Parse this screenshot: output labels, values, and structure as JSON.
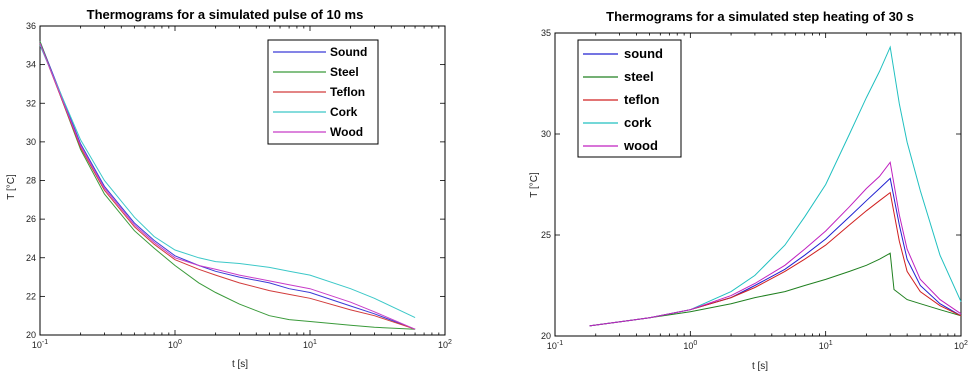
{
  "chart_data": [
    {
      "type": "line",
      "title": "Thermograms for a simulated pulse of 10 ms",
      "xlabel": "t [s]",
      "ylabel": "T [°C]",
      "xscale": "log",
      "xlim": [
        0.1,
        100
      ],
      "ylim": [
        20,
        36
      ],
      "xticks": [
        0.1,
        1,
        10,
        100
      ],
      "xtick_labels": [
        {
          "base": "10",
          "exp": "-1"
        },
        {
          "base": "10",
          "exp": "0"
        },
        {
          "base": "10",
          "exp": "1"
        },
        {
          "base": "10",
          "exp": "2"
        }
      ],
      "yticks": [
        20,
        22,
        24,
        26,
        28,
        30,
        32,
        34,
        36
      ],
      "legend": "top-right",
      "grid": false,
      "series": [
        {
          "name": "Sound",
          "color": "#3b3bd6",
          "x": [
            0.1,
            0.2,
            0.3,
            0.5,
            0.7,
            1,
            1.5,
            2,
            3,
            5,
            7,
            10,
            20,
            30,
            60
          ],
          "y": [
            35.2,
            29.9,
            27.7,
            25.8,
            24.9,
            24.1,
            23.6,
            23.3,
            23.0,
            22.7,
            22.4,
            22.2,
            21.5,
            21.1,
            20.3
          ]
        },
        {
          "name": "Steel",
          "color": "#3a9a3a",
          "x": [
            0.1,
            0.2,
            0.3,
            0.5,
            0.7,
            1,
            1.5,
            2,
            3,
            5,
            7,
            10,
            20,
            30,
            60
          ],
          "y": [
            35.2,
            29.6,
            27.3,
            25.4,
            24.5,
            23.6,
            22.7,
            22.2,
            21.6,
            21.0,
            20.8,
            20.7,
            20.5,
            20.4,
            20.3
          ]
        },
        {
          "name": "Teflon",
          "color": "#d23c3c",
          "x": [
            0.1,
            0.2,
            0.3,
            0.5,
            0.7,
            1,
            1.5,
            2,
            3,
            5,
            7,
            10,
            20,
            30,
            60
          ],
          "y": [
            35.1,
            29.7,
            27.5,
            25.6,
            24.7,
            23.9,
            23.4,
            23.1,
            22.7,
            22.3,
            22.1,
            21.9,
            21.3,
            21.0,
            20.3
          ]
        },
        {
          "name": "Cork",
          "color": "#3cc8c8",
          "x": [
            0.1,
            0.2,
            0.3,
            0.5,
            0.7,
            1,
            1.5,
            2,
            3,
            5,
            7,
            10,
            20,
            30,
            60
          ],
          "y": [
            35.0,
            30.1,
            28.0,
            26.1,
            25.1,
            24.4,
            24.0,
            23.8,
            23.7,
            23.5,
            23.3,
            23.1,
            22.4,
            21.9,
            20.9
          ]
        },
        {
          "name": "Wood",
          "color": "#c83cc8",
          "x": [
            0.1,
            0.2,
            0.3,
            0.5,
            0.7,
            1,
            1.5,
            2,
            3,
            5,
            7,
            10,
            20,
            30,
            60
          ],
          "y": [
            35.1,
            29.8,
            27.6,
            25.7,
            24.8,
            24.0,
            23.6,
            23.4,
            23.1,
            22.8,
            22.6,
            22.4,
            21.7,
            21.2,
            20.3
          ]
        }
      ]
    },
    {
      "type": "line",
      "title": "Thermograms for a simulated step heating of 30 s",
      "xlabel": "t [s]",
      "ylabel": "T [°C]",
      "xscale": "log",
      "xlim": [
        0.1,
        100
      ],
      "ylim": [
        20,
        35
      ],
      "xticks": [
        0.1,
        1,
        10,
        100
      ],
      "xtick_labels": [
        {
          "base": "10",
          "exp": "-1"
        },
        {
          "base": "10",
          "exp": "0"
        },
        {
          "base": "10",
          "exp": "1"
        },
        {
          "base": "10",
          "exp": "2"
        }
      ],
      "yticks": [
        20,
        25,
        30,
        35
      ],
      "legend": "top-left",
      "grid": false,
      "series": [
        {
          "name": "sound",
          "color": "#2020d0",
          "x": [
            0.18,
            0.5,
            1,
            2,
            3,
            5,
            7,
            10,
            15,
            20,
            25,
            30,
            35,
            40,
            50,
            70,
            100
          ],
          "y": [
            20.5,
            20.9,
            21.3,
            21.9,
            22.5,
            23.3,
            24.0,
            24.8,
            25.9,
            26.7,
            27.3,
            27.8,
            25.5,
            23.8,
            22.5,
            21.6,
            21.0
          ]
        },
        {
          "name": "steel",
          "color": "#208020",
          "x": [
            0.18,
            0.5,
            1,
            2,
            3,
            5,
            7,
            10,
            15,
            20,
            25,
            30,
            32,
            40,
            50,
            70,
            100
          ],
          "y": [
            20.5,
            20.9,
            21.2,
            21.6,
            21.9,
            22.2,
            22.5,
            22.8,
            23.2,
            23.5,
            23.8,
            24.1,
            22.3,
            21.8,
            21.6,
            21.3,
            21.0
          ]
        },
        {
          "name": "teflon",
          "color": "#d02020",
          "x": [
            0.18,
            0.5,
            1,
            2,
            3,
            5,
            7,
            10,
            15,
            20,
            25,
            30,
            35,
            40,
            50,
            70,
            100
          ],
          "y": [
            20.5,
            20.9,
            21.3,
            21.9,
            22.4,
            23.2,
            23.8,
            24.5,
            25.5,
            26.2,
            26.7,
            27.1,
            24.7,
            23.2,
            22.2,
            21.5,
            21.0
          ]
        },
        {
          "name": "cork",
          "color": "#20c0c0",
          "x": [
            0.18,
            0.5,
            1,
            2,
            3,
            5,
            7,
            10,
            15,
            20,
            25,
            30,
            35,
            40,
            50,
            70,
            100
          ],
          "y": [
            20.5,
            20.9,
            21.3,
            22.2,
            23.0,
            24.5,
            25.9,
            27.5,
            30.0,
            31.8,
            33.1,
            34.3,
            31.5,
            29.6,
            27.2,
            24.0,
            21.7
          ]
        },
        {
          "name": "wood",
          "color": "#c020c0",
          "x": [
            0.18,
            0.5,
            1,
            2,
            3,
            5,
            7,
            10,
            15,
            20,
            25,
            30,
            35,
            40,
            50,
            70,
            100
          ],
          "y": [
            20.5,
            20.9,
            21.3,
            22.0,
            22.6,
            23.5,
            24.3,
            25.2,
            26.4,
            27.3,
            27.9,
            28.6,
            26.0,
            24.3,
            22.8,
            21.8,
            21.1
          ]
        }
      ]
    }
  ]
}
